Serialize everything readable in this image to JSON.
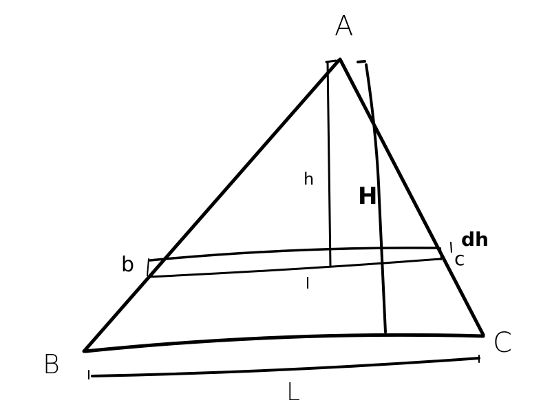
{
  "labels": {
    "A": "A",
    "B": "B",
    "C": "C",
    "b": "b",
    "c": "c",
    "h": "h",
    "H": "H",
    "l": "l",
    "L": "L",
    "dh": "dh"
  }
}
